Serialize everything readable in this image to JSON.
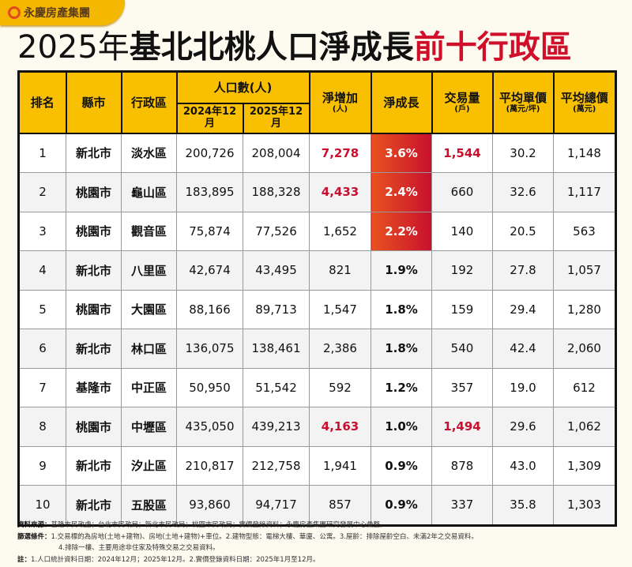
{
  "brand": "永慶房產集團",
  "title": {
    "year": "2025年",
    "main": "基北北桃人口淨成長",
    "highlight": "前十行政區"
  },
  "headers": {
    "rank": "排名",
    "city": "縣市",
    "district": "行政區",
    "population": "人口數(人)",
    "pop_2024": "2024年12月",
    "pop_2025": "2025年12月",
    "net_increase": "淨增加",
    "net_increase_unit": "(人)",
    "net_growth": "淨成長",
    "transactions": "交易量",
    "transactions_unit": "(戶)",
    "avg_unit_price": "平均單價",
    "avg_unit_price_unit": "(萬元/坪)",
    "avg_total_price": "平均總價",
    "avg_total_price_unit": "(萬元)"
  },
  "rows": [
    {
      "rank": "1",
      "city": "新北市",
      "district": "淡水區",
      "pop_2024": "200,726",
      "pop_2025": "208,004",
      "net_increase": "7,278",
      "net_growth": "3.6%",
      "transactions": "1,544",
      "avg_unit_price": "30.2",
      "avg_total_price": "1,148"
    },
    {
      "rank": "2",
      "city": "桃園市",
      "district": "龜山區",
      "pop_2024": "183,895",
      "pop_2025": "188,328",
      "net_increase": "4,433",
      "net_growth": "2.4%",
      "transactions": "660",
      "avg_unit_price": "32.6",
      "avg_total_price": "1,117"
    },
    {
      "rank": "3",
      "city": "桃園市",
      "district": "觀音區",
      "pop_2024": "75,874",
      "pop_2025": "77,526",
      "net_increase": "1,652",
      "net_growth": "2.2%",
      "transactions": "140",
      "avg_unit_price": "20.5",
      "avg_total_price": "563"
    },
    {
      "rank": "4",
      "city": "新北市",
      "district": "八里區",
      "pop_2024": "42,674",
      "pop_2025": "43,495",
      "net_increase": "821",
      "net_growth": "1.9%",
      "transactions": "192",
      "avg_unit_price": "27.8",
      "avg_total_price": "1,057"
    },
    {
      "rank": "5",
      "city": "桃園市",
      "district": "大園區",
      "pop_2024": "88,166",
      "pop_2025": "89,713",
      "net_increase": "1,547",
      "net_growth": "1.8%",
      "transactions": "159",
      "avg_unit_price": "29.4",
      "avg_total_price": "1,280"
    },
    {
      "rank": "6",
      "city": "新北市",
      "district": "林口區",
      "pop_2024": "136,075",
      "pop_2025": "138,461",
      "net_increase": "2,386",
      "net_growth": "1.8%",
      "transactions": "540",
      "avg_unit_price": "42.4",
      "avg_total_price": "2,060"
    },
    {
      "rank": "7",
      "city": "基隆市",
      "district": "中正區",
      "pop_2024": "50,950",
      "pop_2025": "51,542",
      "net_increase": "592",
      "net_growth": "1.2%",
      "transactions": "357",
      "avg_unit_price": "19.0",
      "avg_total_price": "612"
    },
    {
      "rank": "8",
      "city": "桃園市",
      "district": "中壢區",
      "pop_2024": "435,050",
      "pop_2025": "439,213",
      "net_increase": "4,163",
      "net_growth": "1.0%",
      "transactions": "1,494",
      "avg_unit_price": "29.6",
      "avg_total_price": "1,062"
    },
    {
      "rank": "9",
      "city": "新北市",
      "district": "汐止區",
      "pop_2024": "210,817",
      "pop_2025": "212,758",
      "net_increase": "1,941",
      "net_growth": "0.9%",
      "transactions": "878",
      "avg_unit_price": "43.0",
      "avg_total_price": "1,309"
    },
    {
      "rank": "10",
      "city": "新北市",
      "district": "五股區",
      "pop_2024": "93,860",
      "pop_2025": "94,717",
      "net_increase": "857",
      "net_growth": "0.9%",
      "transactions": "337",
      "avg_unit_price": "35.8",
      "avg_total_price": "1,303"
    }
  ],
  "highlight": {
    "red_increase_rows": [
      0,
      1,
      7
    ],
    "red_transactions_rows": [
      0,
      7
    ],
    "hot_growth_rows": [
      0,
      1,
      2
    ],
    "red": "#c8102e",
    "accent": "#f8c000"
  },
  "notes": {
    "source_label": "資料來源：",
    "source": "基隆市民政處；台北市民政局；新北市民政局；桃園市民政局；實價登錄資料；永慶房產集團研究發展中心彙整。",
    "filter_label": "篩選條件：",
    "filter_1": "1.交易標的為房地(土地+建物)、房地(土地+建物)+車位。2.建物型態：電梯大樓、華廈、公寓。3.屋齡：排除屋齡空白、未滿2年之交易資料。",
    "filter_2": "4.排除一樓、主要用途非住家及特殊交易之交易資料。",
    "note_label": "註：",
    "note": "1.人口統計資料日期：2024年12月；2025年12月。2.實價登錄資料日期：2025年1月至12月。"
  }
}
